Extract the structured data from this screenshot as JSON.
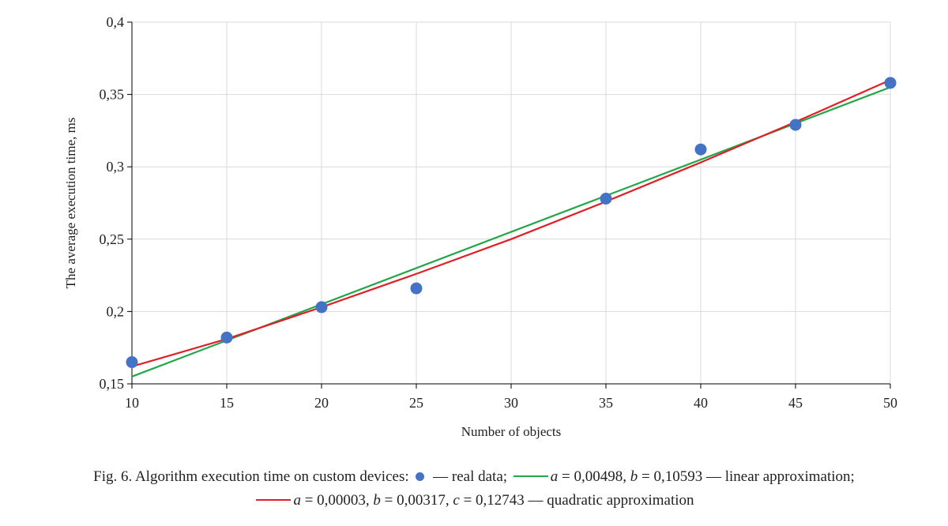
{
  "chart_data": {
    "type": "scatter",
    "xlabel": "Number of objects",
    "ylabel": "The average execution time, ms",
    "xlim": [
      10,
      50
    ],
    "ylim": [
      0.15,
      0.4
    ],
    "x_ticks": [
      10,
      15,
      20,
      25,
      30,
      35,
      40,
      45,
      50
    ],
    "y_ticks": [
      0.15,
      0.2,
      0.25,
      0.3,
      0.35,
      0.4
    ],
    "x_tick_labels": [
      "10",
      "15",
      "20",
      "25",
      "30",
      "35",
      "40",
      "45",
      "50"
    ],
    "y_tick_labels": [
      "0,15",
      "0,2",
      "0,25",
      "0,3",
      "0,35",
      "0,4"
    ],
    "grid": true,
    "series": [
      {
        "type": "scatter",
        "color": "#4472c4",
        "x": [
          10,
          15,
          20,
          25,
          35,
          40,
          45,
          50
        ],
        "y": [
          0.165,
          0.182,
          0.203,
          0.216,
          0.278,
          0.312,
          0.329,
          0.358
        ]
      },
      {
        "type": "line",
        "color": "#21a649",
        "a": 0.00498,
        "b": 0.10593,
        "x": [
          10,
          50
        ],
        "y": [
          0.155,
          0.355
        ]
      },
      {
        "type": "line",
        "color": "#e01f26",
        "a": 3e-05,
        "b": 0.00317,
        "c": 0.12743,
        "x": [
          10,
          15,
          20,
          25,
          30,
          35,
          40,
          45,
          50
        ],
        "y": [
          0.162,
          0.181,
          0.203,
          0.226,
          0.25,
          0.276,
          0.303,
          0.331,
          0.36
        ]
      }
    ]
  },
  "caption": {
    "fig_prefix": "Fig. 6. Algorithm execution time on custom devices:",
    "real_data": "— real data;",
    "linear_params": " = 0,00498, ",
    "linear_b": " = 0,10593 — linear approximation;",
    "quad_a": " = 0,00003, ",
    "quad_b": " = 0,00317, ",
    "quad_c": " = 0,12743 — quadratic approximation",
    "var_a": "a",
    "var_b": "b",
    "var_c": "c"
  }
}
